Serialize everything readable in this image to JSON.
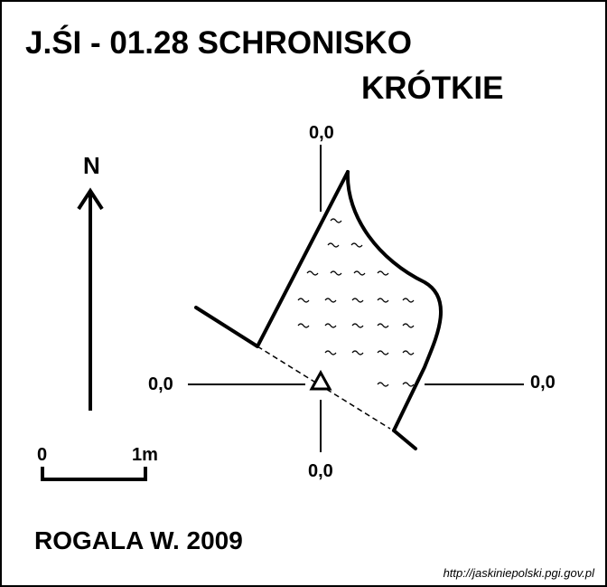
{
  "title": {
    "line1": "J.ŚI - 01.28  SCHRONISKO",
    "line2": "KRÓTKIE"
  },
  "north_label": "N",
  "scale": {
    "start": "0",
    "end": "1m"
  },
  "axis_labels": {
    "top": "0,0",
    "left": "0,0",
    "right": "0,0",
    "bottom": "0,0"
  },
  "author": "ROGALA W. 2009",
  "source": "http://jaskiniepolski.pgi.gov.pl"
}
